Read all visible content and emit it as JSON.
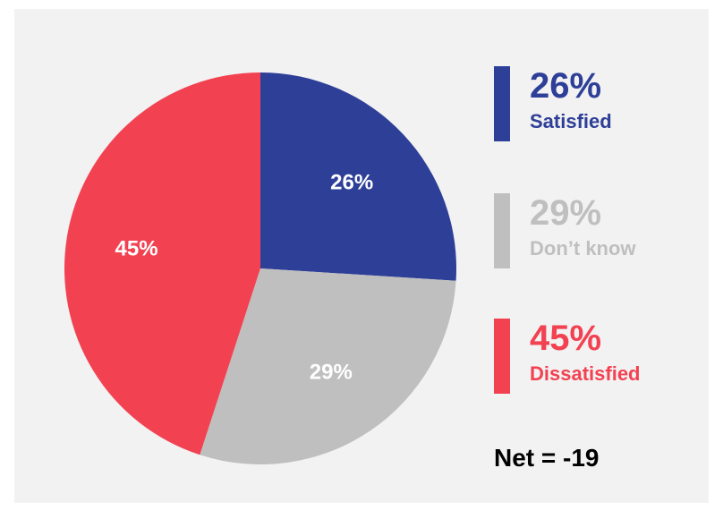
{
  "chart_data": {
    "type": "pie",
    "title": "",
    "slices": [
      {
        "label": "Satisfied",
        "value": 26,
        "display": "26%",
        "color": "#2e3f98"
      },
      {
        "label": "Don’t know",
        "value": 29,
        "display": "29%",
        "color": "#bfbfbf"
      },
      {
        "label": "Dissatisfied",
        "value": 45,
        "display": "45%",
        "color": "#f24252"
      }
    ],
    "start_angle": "12 o'clock",
    "direction": "clockwise",
    "legend_placement": "right"
  },
  "legend": {
    "items": [
      {
        "pct": "26%",
        "name": "Satisfied",
        "color": "#2e3f98"
      },
      {
        "pct": "29%",
        "name": "Don’t know",
        "color": "#bfbfbf"
      },
      {
        "pct": "45%",
        "name": "Dissatisfied",
        "color": "#f24252"
      }
    ]
  },
  "net": {
    "text": "Net = -19"
  }
}
